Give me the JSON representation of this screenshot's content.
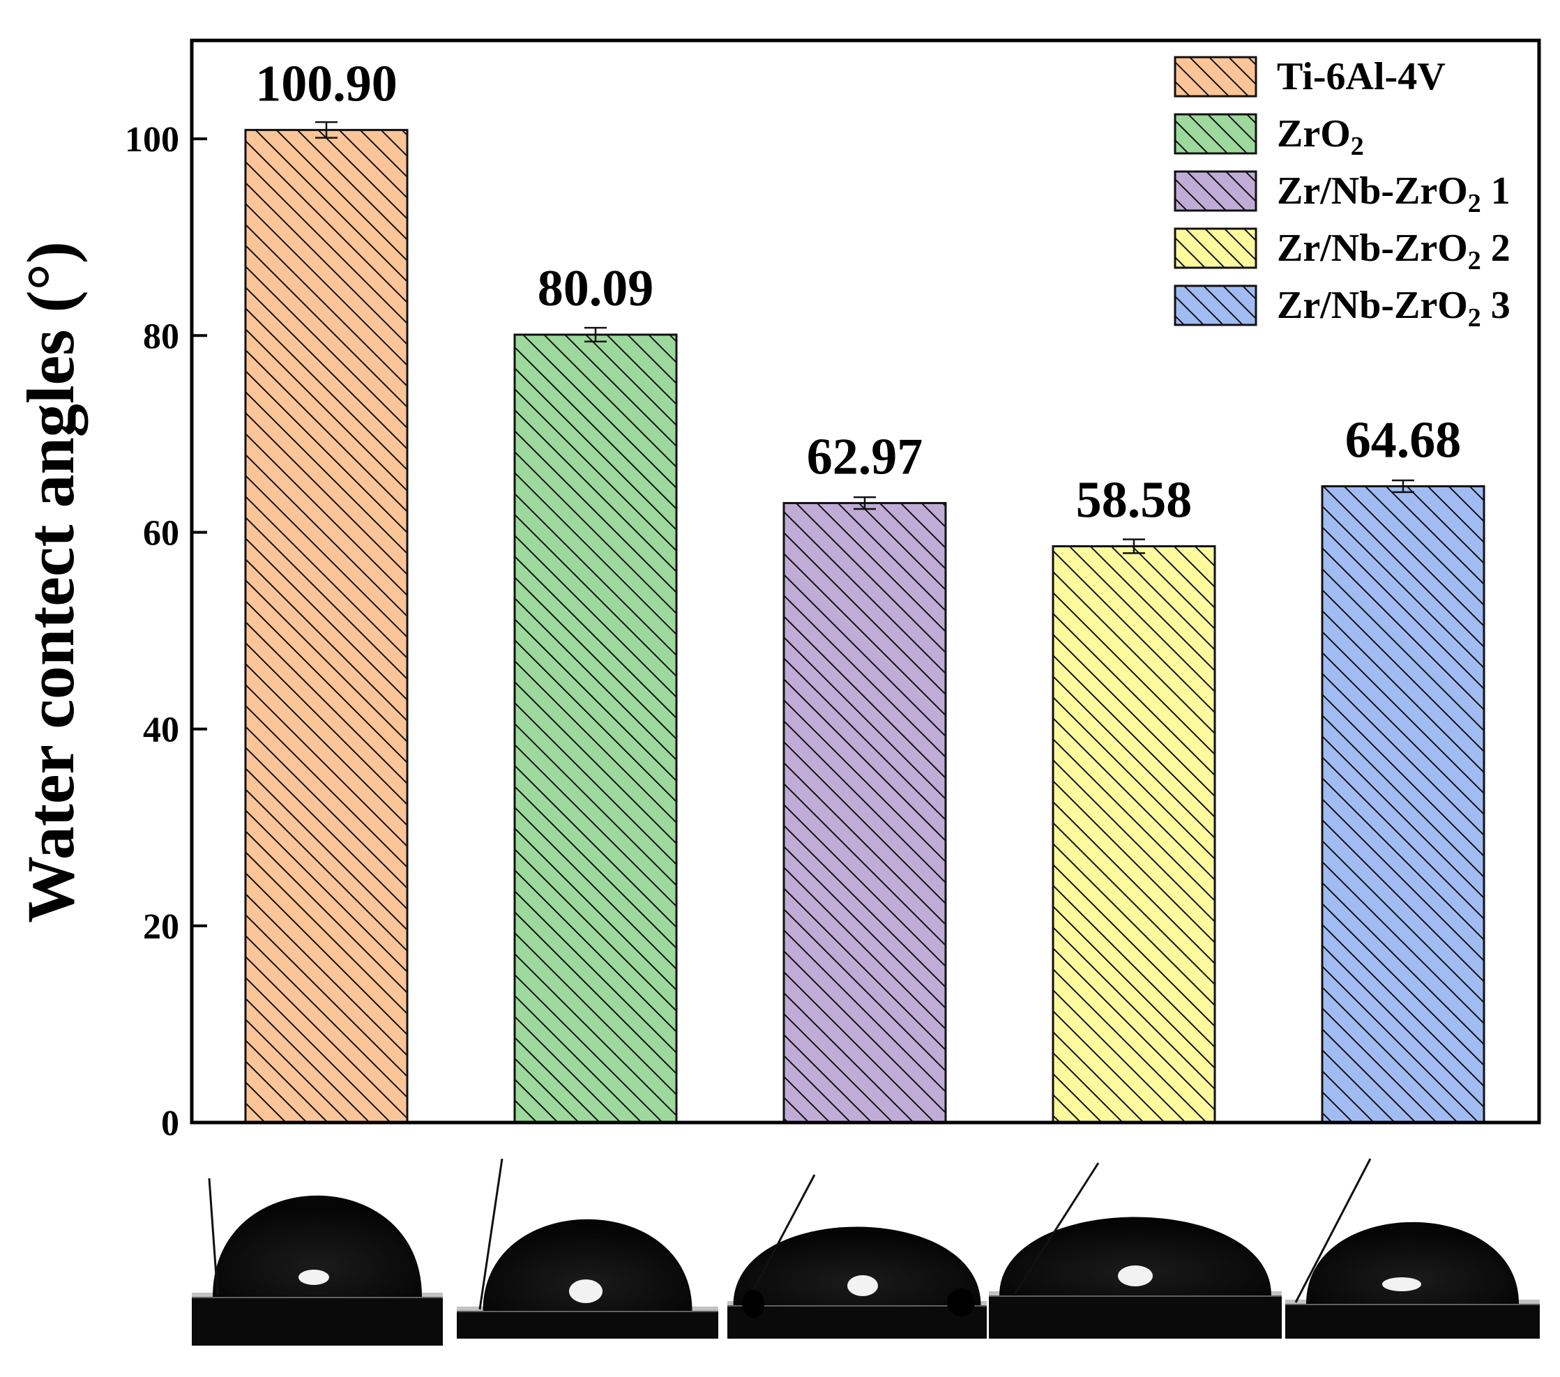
{
  "chart_data": {
    "type": "bar",
    "categories": [
      "Ti-6Al-4V",
      "ZrO2",
      "Zr/Nb-ZrO2 1",
      "Zr/Nb-ZrO2 2",
      "Zr/Nb-ZrO2 3"
    ],
    "values": [
      100.9,
      80.09,
      62.97,
      58.58,
      64.68
    ],
    "value_labels": [
      "100.90",
      "80.09",
      "62.97",
      "58.58",
      "64.68"
    ],
    "errors": [
      0.8,
      0.7,
      0.6,
      0.7,
      0.6
    ],
    "colors": [
      "#fbc597",
      "#9dd99c",
      "#c0acd6",
      "#fdfb9d",
      "#a1bcf2"
    ],
    "hatch": "diagonal",
    "ylabel": "Water contect angles (°)",
    "xlabel": "",
    "ylim": [
      0,
      110
    ],
    "yticks": [
      0,
      20,
      40,
      60,
      80,
      100
    ],
    "legend": {
      "placement": "top-right",
      "entries": [
        {
          "base": "Ti-6Al-4V",
          "sub": "",
          "suffix": ""
        },
        {
          "base": "ZrO",
          "sub": "2",
          "suffix": ""
        },
        {
          "base": "Zr/Nb-ZrO",
          "sub": "2",
          "suffix": " 1"
        },
        {
          "base": "Zr/Nb-ZrO",
          "sub": "2",
          "suffix": " 2"
        },
        {
          "base": "Zr/Nb-ZrO",
          "sub": "2",
          "suffix": " 3"
        }
      ]
    },
    "droplet_images": [
      "water-droplet-photo",
      "water-droplet-photo",
      "water-droplet-photo",
      "water-droplet-photo",
      "water-droplet-photo"
    ]
  }
}
